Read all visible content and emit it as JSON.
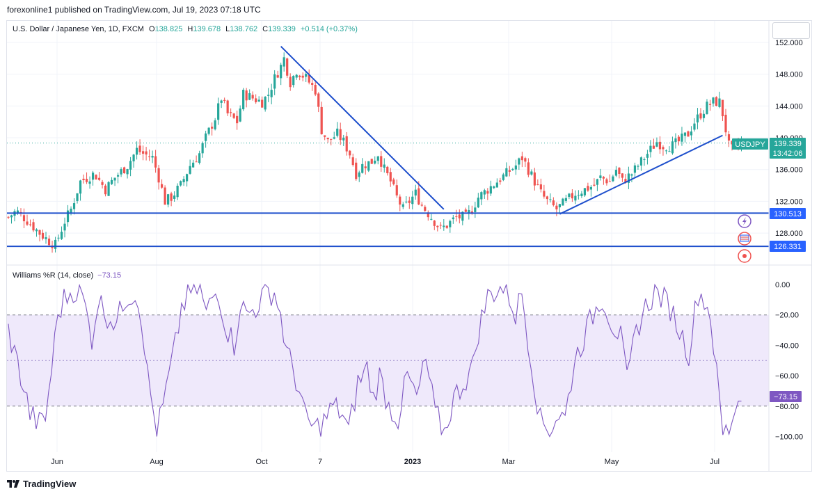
{
  "header": {
    "published": "forexonline1 published on TradingView.com, Jul 19, 2023 07:18 UTC"
  },
  "legend": {
    "symbol": "U.S. Dollar / Japanese Yen, 1D, FXCM",
    "o_label": "O",
    "o_value": "138.825",
    "h_label": "H",
    "h_value": "139.678",
    "l_label": "L",
    "l_value": "138.762",
    "c_label": "C",
    "c_value": "139.339",
    "change": "+0.514 (+0.37%)"
  },
  "indicator": {
    "name": "Williams %R (14, close)",
    "value": "−73.15"
  },
  "price_badges": {
    "symbol": "USDJPY",
    "last": "139.339",
    "countdown": "13:42:06",
    "level_upper": "130.513",
    "level_lower": "126.331",
    "wr_value": "−73.15"
  },
  "icons": [
    "flash-icon",
    "flag-icon",
    "record-icon"
  ],
  "colors": {
    "up": "#26a69a",
    "down": "#ef5350",
    "line": "#1e4fcc",
    "badge": "#2962ff",
    "wr": "#7e57c2",
    "wr_band": "#efe9fb"
  },
  "footer": {
    "brand": "TradingView"
  },
  "chart_data": [
    {
      "type": "candlestick",
      "symbol": "USDJPY",
      "timeframe": "1D",
      "x_ticks": [
        "Jun",
        "Aug",
        "Oct",
        "7",
        "2023",
        "Mar",
        "May",
        "Jul"
      ],
      "y_ticks": [
        "152.000",
        "148.000",
        "144.000",
        "140.000",
        "136.000",
        "132.000",
        "128.000"
      ],
      "ylim": [
        125,
        153
      ],
      "close_path": [
        [
          0,
          130.0
        ],
        [
          5,
          130.8
        ],
        [
          12,
          129.6
        ],
        [
          20,
          128.0
        ],
        [
          26,
          127.0
        ],
        [
          30,
          126.5
        ],
        [
          36,
          129.5
        ],
        [
          40,
          131.0
        ],
        [
          46,
          134.5
        ],
        [
          55,
          135.5
        ],
        [
          62,
          133.5
        ],
        [
          68,
          135.0
        ],
        [
          76,
          136.5
        ],
        [
          82,
          138.5
        ],
        [
          86,
          138.0
        ],
        [
          92,
          137.5
        ],
        [
          96,
          135.0
        ],
        [
          100,
          132.0
        ],
        [
          104,
          132.5
        ],
        [
          110,
          134.0
        ],
        [
          116,
          136.5
        ],
        [
          122,
          138.0
        ],
        [
          126,
          140.0
        ],
        [
          132,
          142.5
        ],
        [
          136,
          145.0
        ],
        [
          140,
          143.0
        ],
        [
          146,
          142.0
        ],
        [
          150,
          145.5
        ],
        [
          156,
          145.0
        ],
        [
          162,
          144.5
        ],
        [
          166,
          145.5
        ],
        [
          170,
          147.5
        ],
        [
          174,
          149.0
        ],
        [
          176,
          150.0
        ],
        [
          178,
          148.5
        ],
        [
          180,
          147.0
        ],
        [
          184,
          148.5
        ],
        [
          190,
          147.5
        ],
        [
          196,
          146.0
        ],
        [
          200,
          141.0
        ],
        [
          204,
          139.5
        ],
        [
          210,
          140.5
        ],
        [
          214,
          139.5
        ],
        [
          218,
          138.0
        ],
        [
          222,
          135.5
        ],
        [
          226,
          136.5
        ],
        [
          232,
          137.0
        ],
        [
          236,
          138.0
        ],
        [
          240,
          136.0
        ],
        [
          244,
          134.5
        ],
        [
          248,
          132.5
        ],
        [
          252,
          131.0
        ],
        [
          256,
          132.0
        ],
        [
          260,
          133.0
        ],
        [
          264,
          131.5
        ],
        [
          268,
          130.5
        ],
        [
          272,
          129.5
        ],
        [
          276,
          128.5
        ],
        [
          280,
          129.0
        ],
        [
          286,
          130.0
        ],
        [
          292,
          130.0
        ],
        [
          296,
          131.0
        ],
        [
          300,
          132.5
        ],
        [
          306,
          133.5
        ],
        [
          312,
          134.5
        ],
        [
          318,
          135.5
        ],
        [
          324,
          136.5
        ],
        [
          328,
          137.5
        ],
        [
          332,
          136.0
        ],
        [
          336,
          134.5
        ],
        [
          340,
          133.0
        ],
        [
          344,
          132.0
        ],
        [
          350,
          131.0
        ],
        [
          356,
          132.0
        ],
        [
          362,
          133.0
        ],
        [
          368,
          133.5
        ],
        [
          374,
          134.0
        ],
        [
          378,
          135.0
        ],
        [
          384,
          134.5
        ],
        [
          388,
          136.0
        ],
        [
          392,
          134.5
        ],
        [
          398,
          135.5
        ],
        [
          404,
          137.0
        ],
        [
          410,
          138.5
        ],
        [
          414,
          139.5
        ],
        [
          418,
          139.0
        ],
        [
          424,
          139.0
        ],
        [
          428,
          139.5
        ],
        [
          434,
          140.5
        ],
        [
          438,
          142.0
        ],
        [
          442,
          143.0
        ],
        [
          446,
          144.0
        ],
        [
          450,
          144.5
        ],
        [
          454,
          144.5
        ],
        [
          456,
          143.0
        ],
        [
          458,
          141.0
        ],
        [
          460,
          139.0
        ],
        [
          462,
          138.5
        ],
        [
          468,
          139.3
        ]
      ],
      "last_price": 139.339,
      "horizontal_levels": [
        130.513,
        126.331
      ],
      "trendlines": [
        {
          "from": [
            174,
            151.5
          ],
          "to": [
            278,
            131.0
          ]
        },
        {
          "from": [
            352,
            130.4
          ],
          "to": [
            456,
            140.3
          ]
        }
      ]
    },
    {
      "type": "line",
      "title": "Williams %R (14, close)",
      "y_ticks": [
        "0.00",
        "−20.00",
        "−40.00",
        "−60.00",
        "−80.00",
        "−100.00"
      ],
      "ylim": [
        -100,
        0
      ],
      "band": [
        -80,
        -20
      ],
      "mid": -50,
      "last_value": -73.15,
      "anchors": [
        [
          0,
          -30
        ],
        [
          8,
          -60
        ],
        [
          14,
          -85
        ],
        [
          20,
          -92
        ],
        [
          24,
          -88
        ],
        [
          28,
          -55
        ],
        [
          32,
          -20
        ],
        [
          36,
          -10
        ],
        [
          42,
          -3
        ],
        [
          48,
          -8
        ],
        [
          54,
          -35
        ],
        [
          58,
          -10
        ],
        [
          64,
          -20
        ],
        [
          70,
          -25
        ],
        [
          76,
          -8
        ],
        [
          82,
          -5
        ],
        [
          86,
          -20
        ],
        [
          90,
          -60
        ],
        [
          96,
          -98
        ],
        [
          100,
          -80
        ],
        [
          104,
          -60
        ],
        [
          108,
          -40
        ],
        [
          112,
          -15
        ],
        [
          118,
          -5
        ],
        [
          124,
          -2
        ],
        [
          128,
          -20
        ],
        [
          132,
          -8
        ],
        [
          136,
          -5
        ],
        [
          140,
          -25
        ],
        [
          146,
          -40
        ],
        [
          150,
          -12
        ],
        [
          154,
          -20
        ],
        [
          160,
          -15
        ],
        [
          166,
          -5
        ],
        [
          172,
          -5
        ],
        [
          176,
          -20
        ],
        [
          180,
          -45
        ],
        [
          184,
          -55
        ],
        [
          188,
          -70
        ],
        [
          192,
          -88
        ],
        [
          198,
          -95
        ],
        [
          204,
          -90
        ],
        [
          210,
          -80
        ],
        [
          216,
          -85
        ],
        [
          220,
          -97
        ],
        [
          226,
          -65
        ],
        [
          232,
          -55
        ],
        [
          236,
          -75
        ],
        [
          240,
          -60
        ],
        [
          246,
          -80
        ],
        [
          252,
          -88
        ],
        [
          258,
          -60
        ],
        [
          264,
          -75
        ],
        [
          270,
          -50
        ],
        [
          276,
          -85
        ],
        [
          282,
          -97
        ],
        [
          288,
          -75
        ],
        [
          294,
          -65
        ],
        [
          300,
          -55
        ],
        [
          304,
          -30
        ],
        [
          310,
          -8
        ],
        [
          316,
          -3
        ],
        [
          322,
          -2
        ],
        [
          328,
          -20
        ],
        [
          332,
          -5
        ],
        [
          338,
          -50
        ],
        [
          344,
          -90
        ],
        [
          350,
          -95
        ],
        [
          356,
          -85
        ],
        [
          360,
          -88
        ],
        [
          366,
          -50
        ],
        [
          372,
          -35
        ],
        [
          378,
          -20
        ],
        [
          384,
          -8
        ],
        [
          390,
          -25
        ],
        [
          396,
          -35
        ],
        [
          400,
          -65
        ],
        [
          406,
          -30
        ],
        [
          412,
          -15
        ],
        [
          418,
          -5
        ],
        [
          422,
          -8
        ],
        [
          428,
          -15
        ],
        [
          434,
          -30
        ],
        [
          440,
          -45
        ],
        [
          446,
          -5
        ],
        [
          450,
          -10
        ],
        [
          454,
          -20
        ],
        [
          458,
          -60
        ],
        [
          462,
          -98
        ],
        [
          466,
          -95
        ],
        [
          470,
          -80
        ],
        [
          474,
          -73
        ]
      ]
    }
  ]
}
